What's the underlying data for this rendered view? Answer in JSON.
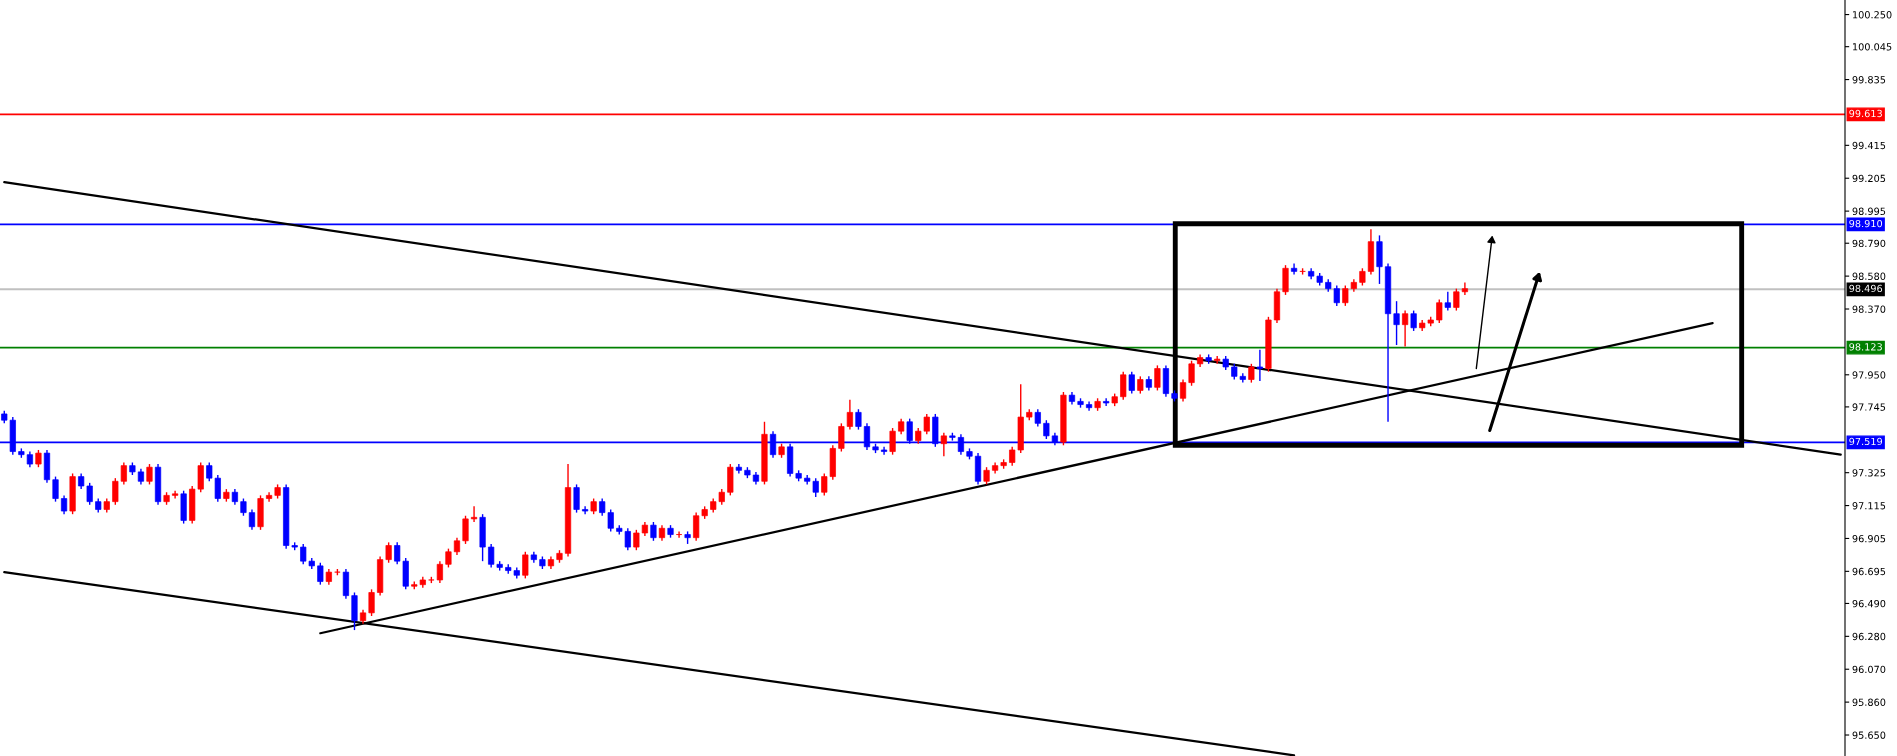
{
  "chart_data": {
    "type": "candlestick",
    "categories": [
      null,
      null,
      null,
      null,
      null,
      null,
      null,
      null,
      null,
      null,
      null,
      null,
      null,
      null,
      null,
      null,
      null,
      null,
      null,
      null,
      null,
      null,
      null,
      null,
      null,
      null,
      null,
      null,
      null,
      null,
      null,
      null,
      null,
      null,
      null,
      null,
      null,
      null,
      null,
      null,
      null,
      null,
      null,
      null,
      null,
      null,
      null,
      null,
      null,
      null,
      null,
      null,
      null,
      null,
      null,
      null,
      null,
      null,
      null,
      null,
      null,
      null,
      null,
      null,
      null,
      null,
      null,
      null,
      null,
      null,
      null,
      null,
      null,
      null,
      null,
      null,
      null,
      null,
      null,
      null,
      null,
      null,
      null,
      null,
      null,
      null,
      null,
      null,
      null,
      null,
      null,
      null,
      null,
      null,
      null,
      null,
      null,
      null,
      null,
      null,
      null,
      null,
      null,
      null,
      null,
      null,
      null,
      null,
      null,
      null,
      null,
      null,
      null,
      null,
      null,
      null,
      null,
      null,
      null,
      null,
      null,
      null,
      null,
      null,
      null,
      null,
      null,
      null,
      null,
      null,
      null,
      null,
      null,
      null,
      null,
      null,
      null,
      null,
      null,
      null,
      null,
      null,
      null,
      null,
      null,
      null,
      null,
      null,
      null,
      null,
      null,
      null,
      null,
      null,
      null,
      null,
      null,
      null,
      null,
      null,
      null,
      null,
      null,
      null,
      null,
      null,
      null,
      null,
      null,
      null,
      null,
      null,
      null,
      null,
      null,
      null,
      null,
      null,
      null,
      null,
      null,
      null,
      null,
      null,
      null,
      null,
      null,
      null,
      null,
      null,
      null,
      null,
      null,
      null,
      null,
      null,
      null,
      null,
      null,
      null,
      null,
      null,
      null,
      null,
      null,
      null,
      null,
      null,
      null,
      null,
      null,
      null,
      null,
      null,
      null,
      null
    ],
    "colors": [
      "#0000ff",
      "#0000ff",
      "#0000ff",
      "#0000ff",
      "#ff0000",
      "#0000ff",
      "#0000ff",
      "#0000ff",
      "#ff0000",
      "#0000ff",
      "#0000ff",
      "#0000ff",
      "#ff0000",
      "#ff0000",
      "#ff0000",
      "#0000ff",
      "#0000ff",
      "#ff0000",
      "#0000ff",
      "#ff0000",
      "#ff0000",
      "#0000ff",
      "#ff0000",
      "#ff0000",
      "#0000ff",
      "#0000ff",
      "#ff0000",
      "#0000ff",
      "#0000ff",
      "#0000ff",
      "#ff0000",
      "#ff0000",
      "#ff0000",
      "#0000ff",
      "#0000ff",
      "#0000ff",
      "#0000ff",
      "#0000ff",
      "#ff0000",
      "#ff0000",
      "#0000ff",
      "#0000ff",
      "#ff0000",
      "#ff0000",
      "#ff0000",
      "#ff0000",
      "#0000ff",
      "#0000ff",
      "#ff0000",
      "#ff0000",
      "#ff0000",
      "#ff0000",
      "#ff0000",
      "#ff0000",
      "#ff0000",
      "#ff0000",
      "#0000ff",
      "#0000ff",
      "#0000ff",
      "#0000ff",
      "#0000ff",
      "#ff0000",
      "#0000ff",
      "#0000ff",
      "#ff0000",
      "#ff0000",
      "#ff0000",
      "#0000ff",
      "#0000ff",
      "#ff0000",
      "#0000ff",
      "#0000ff",
      "#0000ff",
      "#0000ff",
      "#ff0000",
      "#ff0000",
      "#0000ff",
      "#ff0000",
      "#0000ff",
      "#ff0000",
      "#0000ff",
      "#ff0000",
      "#ff0000",
      "#ff0000",
      "#ff0000",
      "#ff0000",
      "#0000ff",
      "#0000ff",
      "#0000ff",
      "#ff0000",
      "#0000ff",
      "#ff0000",
      "#0000ff",
      "#0000ff",
      "#0000ff",
      "#0000ff",
      "#ff0000",
      "#ff0000",
      "#ff0000",
      "#ff0000",
      "#0000ff",
      "#0000ff",
      "#0000ff",
      "#0000ff",
      "#ff0000",
      "#ff0000",
      "#0000ff",
      "#ff0000",
      "#ff0000",
      "#0000ff",
      "#ff0000",
      "#0000ff",
      "#0000ff",
      "#0000ff",
      "#0000ff",
      "#ff0000",
      "#ff0000",
      "#ff0000",
      "#ff0000",
      "#ff0000",
      "#ff0000",
      "#0000ff",
      "#0000ff",
      "#0000ff",
      "#ff0000",
      "#0000ff",
      "#0000ff",
      "#0000ff",
      "#ff0000",
      "#0000ff",
      "#ff0000",
      "#ff0000",
      "#0000ff",
      "#ff0000",
      "#0000ff",
      "#ff0000",
      "#0000ff",
      "#0000ff",
      "#ff0000",
      "#ff0000",
      "#ff0000",
      "#0000ff",
      "#ff0000",
      "#0000ff",
      "#0000ff",
      "#0000ff",
      "#ff0000",
      "#0000ff",
      "#ff0000",
      "#ff0000",
      "#ff0000",
      "#0000ff",
      "#ff0000",
      "#0000ff",
      "#0000ff",
      "#0000ff",
      "#0000ff",
      "#ff0000",
      "#ff0000",
      "#ff0000",
      "#ff0000",
      "#0000ff",
      "#0000ff",
      "#0000ff",
      "#ff0000",
      "#0000ff",
      "#ff0000",
      "#ff0000",
      "#ff0000",
      "#0000ff",
      "#ff0000",
      "#ff0000",
      null,
      null,
      null,
      null,
      null,
      null,
      null,
      null,
      null,
      null,
      null,
      null,
      null,
      null,
      null,
      null,
      null,
      null,
      null,
      null,
      null,
      null,
      null,
      null,
      null,
      null,
      null,
      null,
      null,
      null,
      null,
      null,
      null,
      null,
      null,
      null,
      null,
      null,
      null,
      null,
      null,
      null,
      null,
      null
    ],
    "ohlc": [
      [
        97.7,
        97.72,
        97.64,
        97.66
      ],
      [
        97.66,
        97.68,
        97.44,
        97.46
      ],
      [
        97.46,
        97.48,
        97.42,
        97.44
      ],
      [
        97.44,
        97.46,
        97.36,
        97.38
      ],
      [
        97.38,
        97.47,
        97.36,
        97.45
      ],
      [
        97.45,
        97.47,
        97.26,
        97.28
      ],
      [
        97.28,
        97.3,
        97.14,
        97.16
      ],
      [
        97.16,
        97.18,
        97.06,
        97.08
      ],
      [
        97.08,
        97.32,
        97.06,
        97.3
      ],
      [
        97.3,
        97.32,
        97.22,
        97.24
      ],
      [
        97.24,
        97.26,
        97.12,
        97.14
      ],
      [
        97.14,
        97.16,
        97.07,
        97.09
      ],
      [
        97.09,
        97.16,
        97.07,
        97.14
      ],
      [
        97.14,
        97.29,
        97.12,
        97.27
      ],
      [
        97.27,
        97.39,
        97.25,
        97.37
      ],
      [
        97.37,
        97.39,
        97.31,
        97.33
      ],
      [
        97.33,
        97.35,
        97.25,
        97.27
      ],
      [
        97.27,
        97.38,
        97.25,
        97.36
      ],
      [
        97.36,
        97.38,
        97.12,
        97.14
      ],
      [
        97.14,
        97.2,
        97.12,
        97.18
      ],
      [
        97.18,
        97.21,
        97.16,
        97.19
      ],
      [
        97.19,
        97.21,
        97.0,
        97.02
      ],
      [
        97.02,
        97.24,
        97.0,
        97.22
      ],
      [
        97.22,
        97.39,
        97.2,
        97.37
      ],
      [
        97.37,
        97.39,
        97.27,
        97.29
      ],
      [
        97.29,
        97.31,
        97.14,
        97.16
      ],
      [
        97.16,
        97.22,
        97.14,
        97.2
      ],
      [
        97.2,
        97.22,
        97.12,
        97.14
      ],
      [
        97.14,
        97.16,
        97.05,
        97.07
      ],
      [
        97.07,
        97.09,
        96.96,
        96.98
      ],
      [
        96.98,
        97.18,
        96.96,
        97.16
      ],
      [
        97.16,
        97.2,
        97.14,
        97.18
      ],
      [
        97.18,
        97.25,
        97.16,
        97.23
      ],
      [
        97.23,
        97.25,
        96.84,
        96.86
      ],
      [
        96.86,
        96.88,
        96.83,
        96.85
      ],
      [
        96.85,
        96.87,
        96.74,
        96.76
      ],
      [
        96.76,
        96.78,
        96.71,
        96.73
      ],
      [
        96.73,
        96.75,
        96.61,
        96.63
      ],
      [
        96.63,
        96.71,
        96.61,
        96.69
      ],
      [
        96.69,
        96.71,
        96.67,
        96.69
      ],
      [
        96.69,
        96.71,
        96.52,
        96.54
      ],
      [
        96.54,
        96.56,
        96.32,
        96.38
      ],
      [
        96.38,
        96.45,
        96.36,
        96.43
      ],
      [
        96.43,
        96.58,
        96.41,
        96.56
      ],
      [
        96.56,
        96.79,
        96.54,
        96.77
      ],
      [
        96.77,
        96.88,
        96.75,
        96.86
      ],
      [
        96.86,
        96.88,
        96.74,
        96.76
      ],
      [
        96.76,
        96.78,
        96.58,
        96.6
      ],
      [
        96.6,
        96.63,
        96.58,
        96.61
      ],
      [
        96.61,
        96.66,
        96.59,
        96.64
      ],
      [
        96.64,
        96.66,
        96.62,
        96.64
      ],
      [
        96.64,
        96.76,
        96.62,
        96.74
      ],
      [
        96.74,
        96.84,
        96.72,
        96.82
      ],
      [
        96.82,
        96.91,
        96.8,
        96.89
      ],
      [
        96.89,
        97.05,
        96.87,
        97.03
      ],
      [
        97.03,
        97.11,
        97.01,
        97.04
      ],
      [
        97.04,
        97.06,
        96.76,
        96.85
      ],
      [
        96.85,
        96.87,
        96.72,
        96.74
      ],
      [
        96.74,
        96.76,
        96.7,
        96.72
      ],
      [
        96.72,
        96.74,
        96.68,
        96.7
      ],
      [
        96.7,
        96.72,
        96.65,
        96.67
      ],
      [
        96.67,
        96.82,
        96.65,
        96.8
      ],
      [
        96.8,
        96.82,
        96.75,
        96.77
      ],
      [
        96.77,
        96.79,
        96.71,
        96.73
      ],
      [
        96.73,
        96.79,
        96.71,
        96.77
      ],
      [
        96.77,
        96.83,
        96.75,
        96.81
      ],
      [
        96.81,
        97.38,
        96.79,
        97.23
      ],
      [
        97.23,
        97.25,
        97.07,
        97.09
      ],
      [
        97.09,
        97.11,
        97.06,
        97.08
      ],
      [
        97.08,
        97.16,
        97.06,
        97.14
      ],
      [
        97.14,
        97.16,
        97.05,
        97.07
      ],
      [
        97.07,
        97.09,
        96.95,
        96.97
      ],
      [
        96.97,
        96.99,
        96.93,
        96.95
      ],
      [
        96.95,
        96.97,
        96.83,
        96.85
      ],
      [
        96.85,
        96.96,
        96.83,
        96.94
      ],
      [
        96.94,
        97.01,
        96.92,
        96.99
      ],
      [
        96.99,
        97.01,
        96.89,
        96.91
      ],
      [
        96.91,
        96.99,
        96.89,
        96.97
      ],
      [
        96.97,
        96.99,
        96.91,
        96.93
      ],
      [
        96.93,
        96.95,
        96.91,
        96.93
      ],
      [
        96.93,
        96.95,
        96.87,
        96.91
      ],
      [
        96.91,
        97.07,
        96.89,
        97.05
      ],
      [
        97.05,
        97.11,
        97.03,
        97.09
      ],
      [
        97.09,
        97.16,
        97.07,
        97.14
      ],
      [
        97.14,
        97.22,
        97.12,
        97.2
      ],
      [
        97.2,
        97.38,
        97.18,
        97.36
      ],
      [
        97.36,
        97.38,
        97.32,
        97.34
      ],
      [
        97.34,
        97.36,
        97.29,
        97.31
      ],
      [
        97.31,
        97.33,
        97.25,
        97.27
      ],
      [
        97.27,
        97.65,
        97.25,
        97.57
      ],
      [
        97.57,
        97.59,
        97.42,
        97.44
      ],
      [
        97.44,
        97.51,
        97.42,
        97.49
      ],
      [
        97.49,
        97.51,
        97.3,
        97.32
      ],
      [
        97.32,
        97.34,
        97.27,
        97.29
      ],
      [
        97.29,
        97.31,
        97.25,
        97.27
      ],
      [
        97.27,
        97.29,
        97.17,
        97.2
      ],
      [
        97.2,
        97.32,
        97.18,
        97.3
      ],
      [
        97.3,
        97.5,
        97.28,
        97.48
      ],
      [
        97.48,
        97.64,
        97.46,
        97.62
      ],
      [
        97.62,
        97.79,
        97.6,
        97.71
      ],
      [
        97.71,
        97.73,
        97.6,
        97.62
      ],
      [
        97.62,
        97.64,
        97.47,
        97.49
      ],
      [
        97.49,
        97.51,
        97.45,
        97.47
      ],
      [
        97.47,
        97.49,
        97.44,
        97.46
      ],
      [
        97.46,
        97.61,
        97.44,
        97.59
      ],
      [
        97.59,
        97.67,
        97.57,
        97.65
      ],
      [
        97.65,
        97.67,
        97.51,
        97.53
      ],
      [
        97.53,
        97.61,
        97.51,
        97.59
      ],
      [
        97.59,
        97.7,
        97.57,
        97.68
      ],
      [
        97.68,
        97.7,
        97.49,
        97.51
      ],
      [
        97.51,
        97.58,
        97.43,
        97.56
      ],
      [
        97.56,
        97.58,
        97.53,
        97.55
      ],
      [
        97.55,
        97.57,
        97.44,
        97.46
      ],
      [
        97.46,
        97.48,
        97.41,
        97.43
      ],
      [
        97.43,
        97.45,
        97.25,
        97.27
      ],
      [
        97.27,
        97.36,
        97.25,
        97.34
      ],
      [
        97.34,
        97.39,
        97.32,
        97.37
      ],
      [
        97.37,
        97.41,
        97.35,
        97.39
      ],
      [
        97.39,
        97.49,
        97.37,
        97.47
      ],
      [
        97.47,
        97.89,
        97.45,
        97.68
      ],
      [
        97.68,
        97.73,
        97.66,
        97.71
      ],
      [
        97.71,
        97.73,
        97.62,
        97.64
      ],
      [
        97.64,
        97.66,
        97.54,
        97.56
      ],
      [
        97.56,
        97.58,
        97.5,
        97.52
      ],
      [
        97.52,
        97.84,
        97.5,
        97.82
      ],
      [
        97.82,
        97.84,
        97.76,
        97.78
      ],
      [
        97.78,
        97.8,
        97.74,
        97.76
      ],
      [
        97.76,
        97.78,
        97.72,
        97.74
      ],
      [
        97.74,
        97.8,
        97.72,
        97.78
      ],
      [
        97.78,
        97.8,
        97.75,
        97.77
      ],
      [
        97.77,
        97.83,
        97.75,
        97.81
      ],
      [
        97.81,
        97.97,
        97.79,
        97.95
      ],
      [
        97.95,
        97.97,
        97.83,
        97.85
      ],
      [
        97.85,
        97.94,
        97.83,
        97.92
      ],
      [
        97.92,
        97.94,
        97.85,
        97.87
      ],
      [
        97.87,
        98.01,
        97.85,
        97.99
      ],
      [
        97.99,
        98.01,
        97.81,
        97.83
      ],
      [
        97.83,
        97.85,
        97.78,
        97.8
      ],
      [
        97.8,
        97.92,
        97.78,
        97.9
      ],
      [
        97.9,
        98.04,
        97.88,
        98.02
      ],
      [
        98.02,
        98.08,
        98.0,
        98.06
      ],
      [
        98.06,
        98.08,
        98.02,
        98.04
      ],
      [
        98.04,
        98.07,
        98.02,
        98.05
      ],
      [
        98.05,
        98.07,
        97.98,
        98.0
      ],
      [
        98.0,
        98.02,
        97.92,
        97.94
      ],
      [
        97.94,
        97.96,
        97.9,
        97.92
      ],
      [
        97.92,
        98.02,
        97.9,
        98.0
      ],
      [
        98.0,
        98.11,
        97.91,
        97.99
      ],
      [
        97.99,
        98.32,
        97.97,
        98.3
      ],
      [
        98.3,
        98.5,
        98.28,
        98.48
      ],
      [
        98.48,
        98.65,
        98.46,
        98.63
      ],
      [
        98.63,
        98.66,
        98.59,
        98.61
      ],
      [
        98.61,
        98.63,
        98.59,
        98.61
      ],
      [
        98.61,
        98.63,
        98.56,
        98.58
      ],
      [
        98.58,
        98.6,
        98.52,
        98.54
      ],
      [
        98.54,
        98.56,
        98.48,
        98.5
      ],
      [
        98.5,
        98.52,
        98.39,
        98.41
      ],
      [
        98.41,
        98.52,
        98.39,
        98.5
      ],
      [
        98.5,
        98.56,
        98.48,
        98.54
      ],
      [
        98.54,
        98.63,
        98.52,
        98.61
      ],
      [
        98.61,
        98.88,
        98.59,
        98.8
      ],
      [
        98.8,
        98.84,
        98.53,
        98.64
      ],
      [
        98.64,
        98.66,
        97.65,
        98.34
      ],
      [
        98.34,
        98.42,
        98.14,
        98.27
      ],
      [
        98.27,
        98.36,
        98.13,
        98.34
      ],
      [
        98.34,
        98.36,
        98.23,
        98.25
      ],
      [
        98.25,
        98.3,
        98.23,
        98.28
      ],
      [
        98.28,
        98.32,
        98.26,
        98.3
      ],
      [
        98.3,
        98.43,
        98.28,
        98.41
      ],
      [
        98.41,
        98.48,
        98.36,
        98.38
      ],
      [
        98.38,
        98.5,
        98.36,
        98.48
      ],
      [
        98.48,
        98.54,
        98.46,
        98.5
      ],
      null,
      null,
      null,
      null,
      null,
      null,
      null,
      null,
      null,
      null,
      null,
      null,
      null,
      null,
      null,
      null,
      null,
      null,
      null,
      null,
      null,
      null,
      null,
      null,
      null,
      null,
      null,
      null,
      null,
      null,
      null,
      null,
      null,
      null,
      null,
      null,
      null,
      null,
      null,
      null,
      null,
      null,
      null,
      null
    ],
    "ylim": [
      95.516,
      100.343
    ],
    "yticks": [
      {
        "value": 100.25,
        "label": "100.250"
      },
      {
        "value": 100.045,
        "label": "100.045"
      },
      {
        "value": 99.835,
        "label": "99.835"
      },
      {
        "value": 99.415,
        "label": "99.415"
      },
      {
        "value": 99.205,
        "label": "99.205"
      },
      {
        "value": 98.995,
        "label": "98.995"
      },
      {
        "value": 98.79,
        "label": "98.790"
      },
      {
        "value": 98.58,
        "label": "98.580"
      },
      {
        "value": 98.37,
        "label": "98.370"
      },
      {
        "value": 97.95,
        "label": "97.950"
      },
      {
        "value": 97.745,
        "label": "97.745"
      },
      {
        "value": 97.325,
        "label": "97.325"
      },
      {
        "value": 97.115,
        "label": "97.115"
      },
      {
        "value": 96.905,
        "label": "96.905"
      },
      {
        "value": 96.695,
        "label": "96.695"
      },
      {
        "value": 96.49,
        "label": "96.490"
      },
      {
        "value": 96.28,
        "label": "96.280"
      },
      {
        "value": 96.07,
        "label": "96.070"
      },
      {
        "value": 95.86,
        "label": "95.860"
      },
      {
        "value": 95.65,
        "label": "95.650"
      }
    ],
    "ref_lines": [
      {
        "axis": "y",
        "value": 99.613,
        "label": "99.613",
        "color": "#ff0000"
      },
      {
        "axis": "y",
        "value": 98.91,
        "label": "98.910",
        "color": "#0000ff"
      },
      {
        "axis": "y",
        "value": 98.496,
        "label": "98.496",
        "color": "#c0c0c0"
      },
      {
        "axis": "y",
        "value": 98.123,
        "label": "98.123",
        "color": "#008000"
      },
      {
        "axis": "y",
        "value": 97.519,
        "label": "97.519",
        "color": "#0000ff"
      }
    ],
    "series": [
      {
        "type": "line",
        "color": "#000000",
        "values": [
          99.18,
          null,
          null,
          null,
          null,
          null,
          null,
          null,
          null,
          null,
          null,
          null,
          null,
          null,
          null,
          null,
          null,
          null,
          null,
          null,
          null,
          null,
          null,
          null,
          null,
          null,
          null,
          null,
          null,
          null,
          null,
          null,
          null,
          null,
          null,
          null,
          null,
          null,
          null,
          null,
          null,
          null,
          null,
          null,
          null,
          null,
          null,
          null,
          null,
          null,
          null,
          null,
          null,
          null,
          null,
          null,
          null,
          null,
          null,
          null,
          null,
          null,
          null,
          null,
          null,
          null,
          null,
          null,
          null,
          null,
          null,
          null,
          null,
          null,
          null,
          null,
          null,
          null,
          null,
          null,
          null,
          null,
          null,
          null,
          null,
          null,
          null,
          null,
          null,
          null,
          null,
          null,
          null,
          null,
          null,
          null,
          null,
          null,
          null,
          null,
          null,
          null,
          null,
          null,
          null,
          null,
          null,
          null,
          null,
          null,
          null,
          null,
          null,
          null,
          null,
          null,
          null,
          null,
          null,
          null,
          null,
          null,
          null,
          null,
          null,
          null,
          null,
          null,
          null,
          null,
          null,
          null,
          null,
          null,
          null,
          null,
          null,
          null,
          null,
          null,
          null,
          null,
          null,
          null,
          null,
          null,
          null,
          null,
          null,
          null,
          null,
          null,
          null,
          null,
          null,
          null,
          null,
          null,
          null,
          null,
          null,
          null,
          null,
          null,
          null,
          null,
          null,
          null,
          null,
          null,
          null,
          null,
          null,
          null,
          null,
          null,
          null,
          null,
          null,
          null,
          null,
          null,
          null,
          null,
          null,
          null,
          null,
          null,
          null,
          null,
          null,
          null,
          null,
          null,
          null,
          null,
          null,
          null,
          null,
          null,
          null,
          null,
          null,
          null,
          null,
          null,
          null,
          null,
          null,
          null,
          null,
          null,
          null,
          null,
          null,
          97.44
        ]
      },
      {
        "type": "line",
        "color": "#000000",
        "values": [
          96.69,
          null,
          null,
          null,
          null,
          null,
          null,
          null,
          null,
          null,
          null,
          null,
          null,
          null,
          null,
          null,
          null,
          null,
          null,
          null,
          null,
          null,
          null,
          null,
          null,
          null,
          null,
          null,
          null,
          null,
          null,
          null,
          null,
          null,
          null,
          null,
          null,
          null,
          null,
          null,
          null,
          null,
          null,
          null,
          null,
          null,
          null,
          null,
          null,
          null,
          null,
          null,
          null,
          null,
          null,
          null,
          null,
          null,
          null,
          null,
          null,
          null,
          null,
          null,
          null,
          null,
          null,
          null,
          null,
          null,
          null,
          null,
          null,
          null,
          null,
          null,
          null,
          null,
          null,
          null,
          null,
          null,
          null,
          null,
          null,
          null,
          null,
          null,
          null,
          null,
          null,
          null,
          null,
          null,
          null,
          null,
          null,
          null,
          null,
          null,
          null,
          null,
          null,
          null,
          null,
          null,
          null,
          null,
          null,
          null,
          null,
          null,
          null,
          null,
          null,
          null,
          null,
          null,
          null,
          null,
          null,
          null,
          null,
          null,
          null,
          null,
          null,
          null,
          null,
          null,
          null,
          null,
          null,
          null,
          null,
          null,
          null,
          null,
          null,
          null,
          null,
          null,
          null,
          null,
          null,
          null,
          null,
          null,
          null,
          null,
          null,
          95.52,
          null,
          null,
          null,
          null,
          null,
          null,
          null,
          null,
          null,
          null,
          null,
          null,
          null,
          null,
          null,
          null,
          null,
          null,
          null,
          null,
          null,
          null,
          null,
          null,
          null,
          null,
          null,
          null,
          null,
          null,
          null,
          null,
          null,
          null,
          null,
          null,
          null,
          null,
          null,
          null,
          null,
          null,
          null,
          null,
          null,
          null,
          null,
          null,
          null,
          null,
          null,
          null,
          null,
          null,
          null,
          null,
          null,
          null,
          null,
          null,
          null,
          null,
          null,
          null
        ]
      },
      {
        "type": "line",
        "color": "#000000",
        "values": [
          null,
          null,
          null,
          null,
          null,
          null,
          null,
          null,
          null,
          null,
          null,
          null,
          null,
          null,
          null,
          null,
          null,
          null,
          null,
          null,
          null,
          null,
          null,
          null,
          null,
          null,
          null,
          null,
          null,
          null,
          null,
          null,
          null,
          null,
          null,
          null,
          null,
          96.3,
          null,
          null,
          null,
          null,
          null,
          null,
          null,
          null,
          null,
          null,
          null,
          null,
          null,
          null,
          null,
          null,
          null,
          null,
          null,
          null,
          null,
          null,
          null,
          null,
          null,
          null,
          null,
          null,
          null,
          null,
          null,
          null,
          null,
          null,
          null,
          null,
          null,
          null,
          null,
          null,
          null,
          null,
          null,
          null,
          null,
          null,
          null,
          null,
          null,
          null,
          null,
          null,
          null,
          null,
          null,
          null,
          null,
          null,
          null,
          null,
          null,
          null,
          null,
          null,
          null,
          null,
          null,
          null,
          null,
          null,
          null,
          null,
          null,
          null,
          null,
          null,
          null,
          null,
          null,
          null,
          null,
          null,
          null,
          null,
          null,
          null,
          null,
          null,
          null,
          null,
          null,
          null,
          null,
          null,
          null,
          null,
          null,
          null,
          null,
          null,
          null,
          null,
          null,
          null,
          null,
          null,
          null,
          null,
          null,
          null,
          null,
          null,
          null,
          null,
          null,
          null,
          null,
          null,
          null,
          null,
          null,
          null,
          null,
          null,
          null,
          null,
          null,
          null,
          null,
          null,
          null,
          null,
          null,
          null,
          null,
          null,
          null,
          null,
          null,
          null,
          null,
          null,
          null,
          null,
          null,
          null,
          null,
          null,
          null,
          null,
          null,
          null,
          null,
          null,
          null,
          null,
          null,
          null,
          null,
          null,
          null,
          null,
          98.28,
          null,
          null,
          null,
          null,
          null,
          null,
          null,
          null,
          null,
          null,
          null,
          null,
          null,
          null,
          null
        ]
      }
    ],
    "tick_labels": "y",
    "grid": false
  }
}
